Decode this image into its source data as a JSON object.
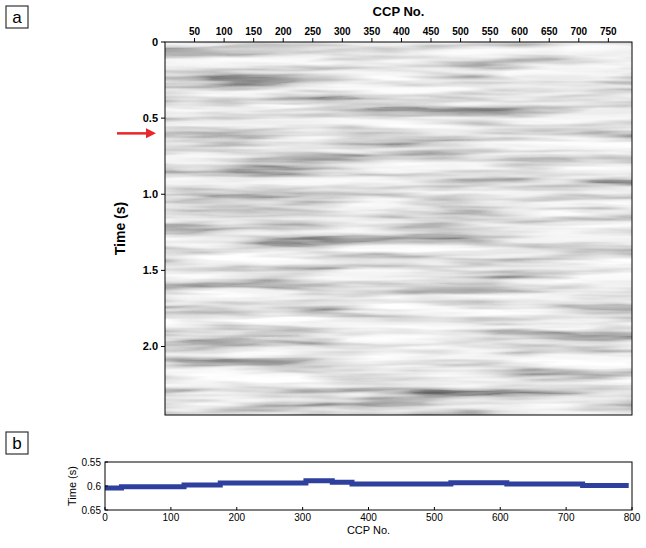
{
  "chart_data": [
    {
      "type": "seismic",
      "label": "a",
      "xlabel": "CCP No.",
      "ylabel": "Time (s)",
      "xlim": [
        0,
        790
      ],
      "xticks": [
        50,
        100,
        150,
        200,
        250,
        300,
        350,
        400,
        450,
        500,
        550,
        600,
        650,
        700,
        750
      ],
      "ylim": [
        0,
        2.45
      ],
      "yticks": [
        0,
        0.5,
        {
          "value": 1,
          "label": "1.0"
        },
        1.5,
        {
          "value": 2,
          "label": "2.0"
        }
      ],
      "arrow_time": 0.6,
      "color": "#e8262b"
    },
    {
      "type": "line",
      "label": "b",
      "xlabel": "CCP No.",
      "ylabel": "Time (s)",
      "x": [
        0,
        25,
        25,
        120,
        120,
        175,
        175,
        305,
        305,
        345,
        345,
        375,
        375,
        525,
        525,
        610,
        610,
        725,
        725,
        795
      ],
      "values": [
        0.604,
        0.604,
        0.6015,
        0.6015,
        0.598,
        0.598,
        0.594,
        0.594,
        0.589,
        0.589,
        0.592,
        0.592,
        0.596,
        0.596,
        0.593,
        0.593,
        0.596,
        0.596,
        0.599,
        0.599
      ],
      "color": "#2e3f9e",
      "line_style": "solid",
      "xlim": [
        0,
        800
      ],
      "xticks": [
        0,
        100,
        200,
        300,
        400,
        500,
        600,
        700,
        800
      ],
      "ylim": [
        0.65,
        0.55
      ],
      "yticks": [
        0.55,
        0.6,
        0.65
      ]
    }
  ]
}
